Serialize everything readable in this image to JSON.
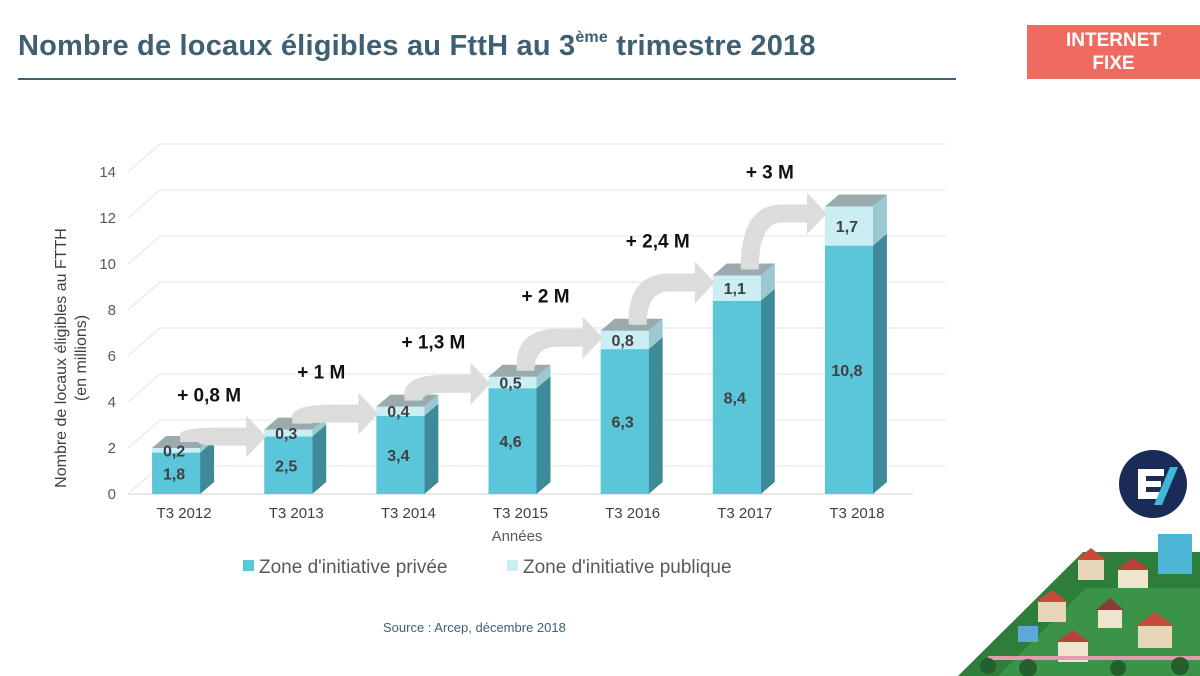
{
  "header": {
    "title_main": "Nombre de locaux éligibles au FttH au 3",
    "title_sup": "ème",
    "title_end": " trimestre 2018",
    "badge_line1": "INTERNET",
    "badge_line2": "FIXE"
  },
  "source": "Source : Arcep, décembre 2018",
  "colors": {
    "title": "#3f5f73",
    "badge": "#ef6a5f",
    "private_front": "#5bc5d9",
    "private_side": "#3d8a99",
    "public_front": "#cbeef4",
    "public_top": "#9aabae",
    "arrow": "#dcdcdc",
    "logo": "#1b2b57"
  },
  "icons": {
    "logo": "operator-logo-icon",
    "decor": "town-illustration-icon"
  },
  "chart_data": {
    "type": "bar",
    "stacked": true,
    "categories": [
      "T3 2012",
      "T3 2013",
      "T3 2014",
      "T3 2015",
      "T3 2016",
      "T3 2017",
      "T3 2018"
    ],
    "series": [
      {
        "name": "Zone d'initiative privée",
        "values": [
          1.8,
          2.5,
          3.4,
          4.6,
          6.3,
          8.4,
          10.8
        ],
        "labels": [
          "1,8",
          "2,5",
          "3,4",
          "4,6",
          "6,3",
          "8,4",
          "10,8"
        ]
      },
      {
        "name": "Zone d'initiative publique",
        "values": [
          0.2,
          0.3,
          0.4,
          0.5,
          0.8,
          1.1,
          1.7
        ],
        "labels": [
          "0,2",
          "0,3",
          "0,4",
          "0,5",
          "0,8",
          "1,1",
          "1,7"
        ]
      }
    ],
    "annotations": [
      "+ 0,8 M",
      "+ 1 M",
      "+ 1,3 M",
      "+ 2 M",
      "+ 2,4 M",
      "+ 3 M"
    ],
    "xlabel": "Années",
    "ylabel": "Nombre de locaux éligibles au FTTH",
    "ylabel_unit": "(en millions)",
    "ylim": [
      0,
      14
    ],
    "yticks": [
      0,
      2,
      4,
      6,
      8,
      10,
      12,
      14
    ],
    "grid": true,
    "legend_position": "bottom"
  }
}
